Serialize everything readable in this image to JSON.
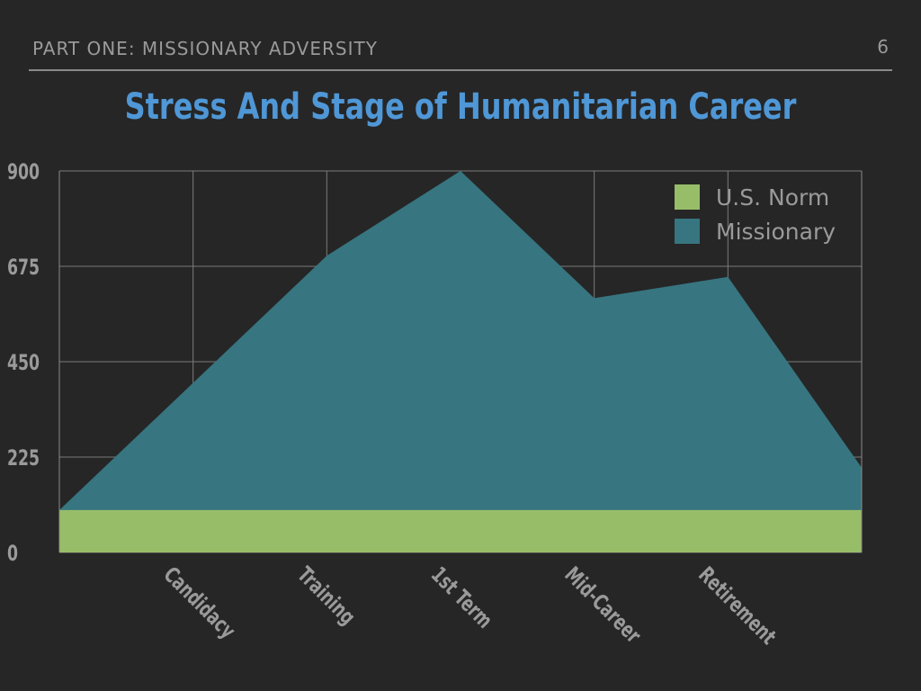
{
  "slide": {
    "section_label": "PART ONE: MISSIONARY ADVERSITY",
    "page_number": "6"
  },
  "chart_data": {
    "type": "area",
    "title": "Stress And Stage of Humanitarian Career",
    "xlabel": "",
    "ylabel": "",
    "categories": [
      "Candidacy",
      "Training",
      "1st Term",
      "Mid-Career",
      "Retirement"
    ],
    "x_positions": [
      0,
      1,
      2,
      3,
      4,
      5,
      6
    ],
    "series": [
      {
        "name": "Missionary",
        "color": "#377580",
        "points": [
          {
            "x": 0,
            "y": 100
          },
          {
            "x": 2,
            "y": 700
          },
          {
            "x": 3,
            "y": 900
          },
          {
            "x": 4,
            "y": 600
          },
          {
            "x": 5,
            "y": 650
          },
          {
            "x": 6,
            "y": 200
          }
        ]
      },
      {
        "name": "U.S. Norm",
        "color": "#97bd69",
        "points": [
          {
            "x": 0,
            "y": 100
          },
          {
            "x": 6,
            "y": 100
          }
        ]
      }
    ],
    "yticks": [
      "0",
      "225",
      "450",
      "675",
      "900"
    ],
    "ylim": [
      0,
      900
    ],
    "grid": true,
    "legend_position": "top-right"
  }
}
